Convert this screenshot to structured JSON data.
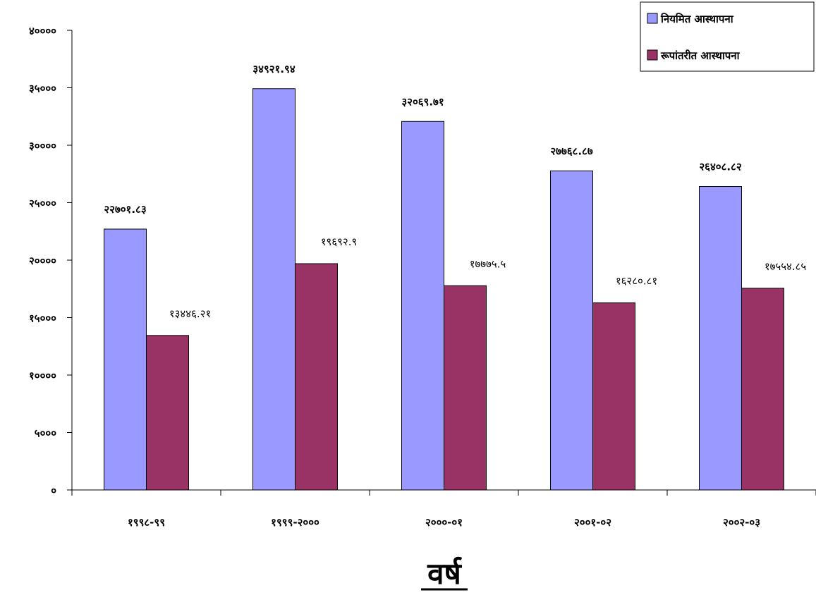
{
  "chart_data": {
    "type": "bar",
    "categories": [
      "१९९८-९९",
      "१९९९-२०००",
      "२०००-०१",
      "२००१-०२",
      "२००२-०३"
    ],
    "series": [
      {
        "name": "नियमित आस्थापना",
        "color": "#9999ff",
        "values": [
          22701.83,
          34921.94,
          32069.71,
          27768.87,
          26408.82
        ],
        "labels": [
          "२२७०१.८३",
          "३४९२१.९४",
          "३२०६९.७१",
          "२७७६८.८७",
          "२६४०८.८२"
        ]
      },
      {
        "name": "रूपांतरीत आस्थापना",
        "color": "#993366",
        "values": [
          13446.21,
          19692.9,
          17775.5,
          16280.81,
          17554.85
        ],
        "labels": [
          "१३४४६.२१",
          "१९६९२.९",
          "१७७७५.५",
          "१६२८०.८१",
          "१७५५४.८५"
        ]
      }
    ],
    "ylim": [
      0,
      40000
    ],
    "yticks": [
      0,
      5000,
      10000,
      15000,
      20000,
      25000,
      30000,
      35000,
      40000
    ],
    "ytick_labels": [
      "०",
      "५०००",
      "१००००",
      "१५०००",
      "२००००",
      "२५०००",
      "३००००",
      "३५०००",
      "४००००"
    ],
    "xlabel": "वर्ष",
    "ylabel": "",
    "grid": false,
    "legend": "top-right"
  }
}
